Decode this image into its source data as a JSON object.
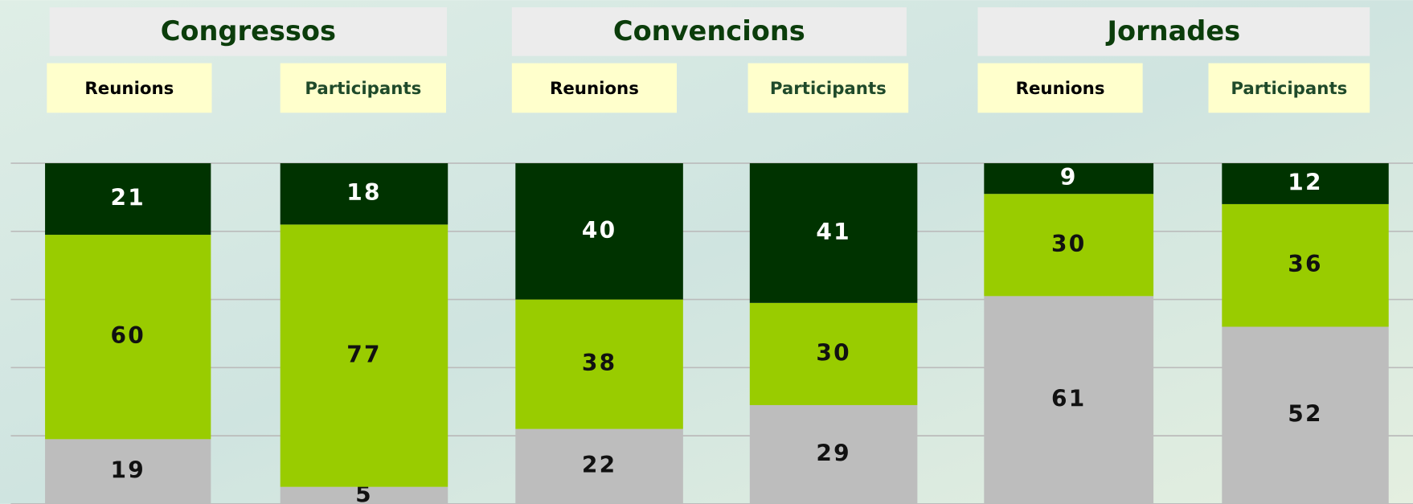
{
  "chart_data": {
    "type": "bar",
    "stacked": true,
    "groups": [
      "Congressos",
      "Convencions",
      "Jornades"
    ],
    "categories": [
      "Reunions",
      "Participants",
      "Reunions",
      "Participants",
      "Reunions",
      "Participants"
    ],
    "series": [
      {
        "color": "#bdbdbd",
        "values": [
          19,
          5,
          22,
          29,
          61,
          52
        ]
      },
      {
        "color": "#99cc00",
        "values": [
          60,
          77,
          38,
          30,
          30,
          36
        ]
      },
      {
        "color": "#003300",
        "values": [
          21,
          18,
          40,
          41,
          9,
          12
        ]
      }
    ],
    "label_colors": [
      "#111111",
      "#111111",
      "#ffffff"
    ],
    "category_colors": [
      "#000000",
      "#1f4a2a"
    ],
    "ylim": [
      0,
      100
    ],
    "yticks": [
      0,
      20,
      40,
      60,
      80,
      100
    ],
    "grid": true
  }
}
